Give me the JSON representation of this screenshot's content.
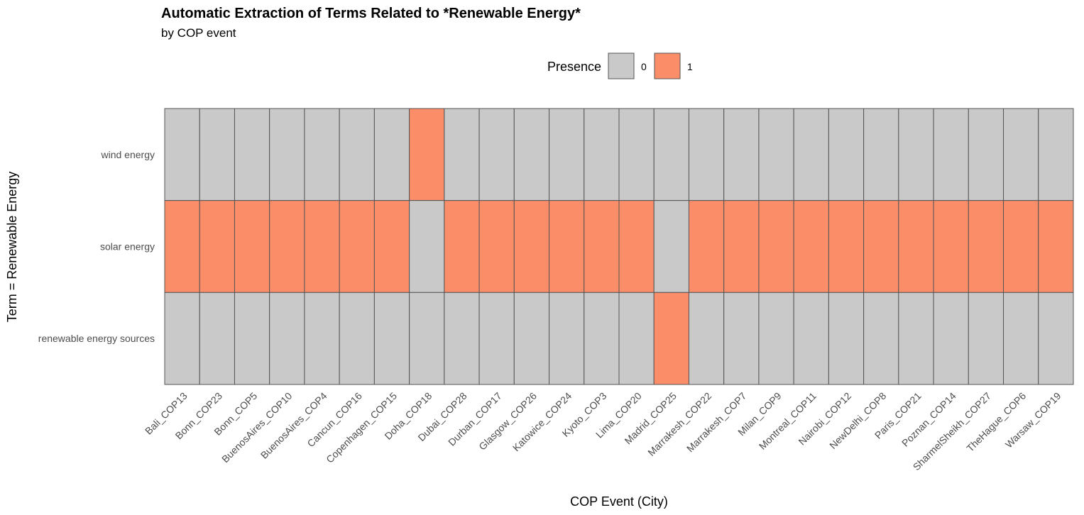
{
  "chart_data": {
    "type": "heatmap",
    "title": "Automatic Extraction of Terms Related to *Renewable Energy*",
    "subtitle": "by COP event",
    "xlabel": "COP Event (City)",
    "ylabel": "Term = Renewable Energy",
    "legend": {
      "title": "Presence",
      "position": "top",
      "entries": [
        {
          "label": "0",
          "value": 0,
          "color": "#c9c9c9"
        },
        {
          "label": "1",
          "value": 1,
          "color": "#fc8d69"
        }
      ]
    },
    "x": [
      "Bali_COP13",
      "Bonn_COP23",
      "Bonn_COP5",
      "BuenosAires_COP10",
      "BuenosAires_COP4",
      "Cancun_COP16",
      "Copenhagen_COP15",
      "Doha_COP18",
      "Dubai_COP28",
      "Durban_COP17",
      "Glasgow_COP26",
      "Katowice_COP24",
      "Kyoto_COP3",
      "Lima_COP20",
      "Madrid_COP25",
      "Marrakesh_COP22",
      "Marrakesh_COP7",
      "Milan_COP9",
      "Montreal_COP11",
      "Nairobi_COP12",
      "NewDelhi_COP8",
      "Paris_COP21",
      "Poznan_COP14",
      "SharmelSheikh_COP27",
      "TheHague_COP6",
      "Warsaw_COP19"
    ],
    "y": [
      "wind energy",
      "solar energy",
      "renewable energy sources"
    ],
    "values": [
      [
        0,
        0,
        0,
        0,
        0,
        0,
        0,
        1,
        0,
        0,
        0,
        0,
        0,
        0,
        0,
        0,
        0,
        0,
        0,
        0,
        0,
        0,
        0,
        0,
        0,
        0
      ],
      [
        1,
        1,
        1,
        1,
        1,
        1,
        1,
        0,
        1,
        1,
        1,
        1,
        1,
        1,
        0,
        1,
        1,
        1,
        1,
        1,
        1,
        1,
        1,
        1,
        1,
        1
      ],
      [
        0,
        0,
        0,
        0,
        0,
        0,
        0,
        0,
        0,
        0,
        0,
        0,
        0,
        0,
        1,
        0,
        0,
        0,
        0,
        0,
        0,
        0,
        0,
        0,
        0,
        0
      ]
    ],
    "grid": false
  }
}
